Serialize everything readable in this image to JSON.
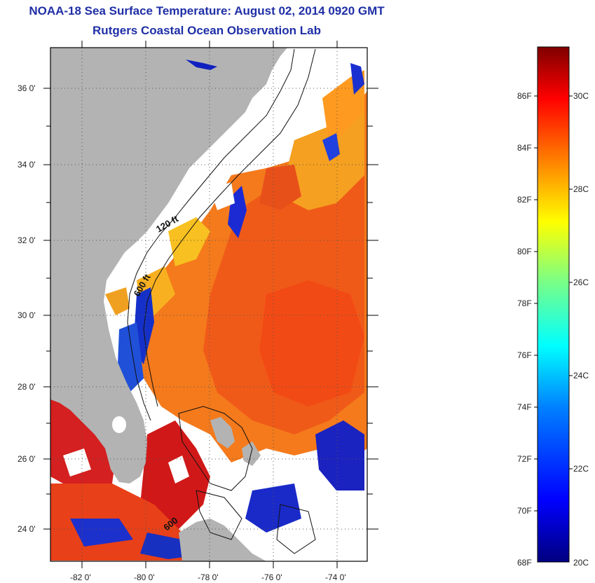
{
  "title": {
    "line1": "NOAA-18 Sea Surface Temperature:  August 02, 2014 0920 GMT",
    "line2": "Rutgers Coastal Ocean Observation Lab"
  },
  "map": {
    "lat_labels": [
      "36 0'",
      "34 0'",
      "32 0'",
      "30 0'",
      "28 0'",
      "26 0'",
      "24 0'"
    ],
    "lon_labels": [
      "-82 0'",
      "-80 0'",
      "-78 0'",
      "-76 0'",
      "-74 0'"
    ],
    "contour_labels": [
      "120 ft",
      "600 ft",
      "600"
    ],
    "colors": {
      "land": "#b3b3b3",
      "cloud": "#ffffff",
      "frame": "#000000"
    }
  },
  "colorbar": {
    "fahrenheit_labels": [
      "86F",
      "84F",
      "82F",
      "80F",
      "78F",
      "76F",
      "74F",
      "72F",
      "70F",
      "68F"
    ],
    "celsius_labels": [
      "30C",
      "28C",
      "26C",
      "24C",
      "22C",
      "20C"
    ],
    "stops": [
      "#00007f",
      "#0000ff",
      "#0080ff",
      "#00ffff",
      "#80ff80",
      "#ffff00",
      "#ff8000",
      "#ff0000",
      "#7f0000"
    ]
  }
}
